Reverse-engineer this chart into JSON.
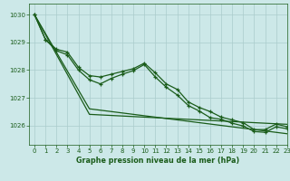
{
  "bg_color": "#cce8e8",
  "grid_color": "#aacccc",
  "line_color": "#1a5c1a",
  "xlabel": "Graphe pression niveau de la mer (hPa)",
  "xlabel_color": "#1a5c1a",
  "tick_color": "#1a5c1a",
  "xlim": [
    -0.5,
    23
  ],
  "ylim": [
    1025.3,
    1030.4
  ],
  "yticks": [
    1026,
    1027,
    1028,
    1029,
    1030
  ],
  "xticks": [
    0,
    1,
    2,
    3,
    4,
    5,
    6,
    7,
    8,
    9,
    10,
    11,
    12,
    13,
    14,
    15,
    16,
    17,
    18,
    19,
    20,
    21,
    22,
    23
  ],
  "curve_line1": [
    1030.0,
    1029.1,
    1028.75,
    1028.65,
    1028.1,
    1027.8,
    1027.75,
    1027.85,
    1027.95,
    1028.05,
    1028.25,
    1027.9,
    1027.5,
    1027.3,
    1026.85,
    1026.65,
    1026.5,
    1026.3,
    1026.2,
    1026.1,
    1025.85,
    1025.85,
    1026.05,
    1025.95
  ],
  "curve_line2": [
    1030.0,
    1029.1,
    1028.7,
    1028.55,
    1028.0,
    1027.65,
    1027.5,
    1027.7,
    1027.85,
    1027.98,
    1028.2,
    1027.75,
    1027.38,
    1027.1,
    1026.72,
    1026.52,
    1026.28,
    1026.22,
    1026.08,
    1025.98,
    1025.78,
    1025.75,
    1025.95,
    1025.88
  ],
  "curve_diag1": [
    1030.0,
    1029.32,
    1028.64,
    1027.96,
    1027.28,
    1026.6,
    1026.55,
    1026.5,
    1026.45,
    1026.4,
    1026.35,
    1026.3,
    1026.25,
    1026.2,
    1026.15,
    1026.1,
    1026.05,
    1026.0,
    1025.95,
    1025.9,
    1025.85,
    1025.8,
    1025.75,
    1025.7
  ],
  "curve_diag2": [
    1030.0,
    1029.28,
    1028.56,
    1027.84,
    1027.12,
    1026.4,
    1026.38,
    1026.36,
    1026.34,
    1026.32,
    1026.3,
    1026.28,
    1026.26,
    1026.24,
    1026.22,
    1026.2,
    1026.18,
    1026.16,
    1026.14,
    1026.12,
    1026.1,
    1026.08,
    1026.06,
    1026.04
  ]
}
